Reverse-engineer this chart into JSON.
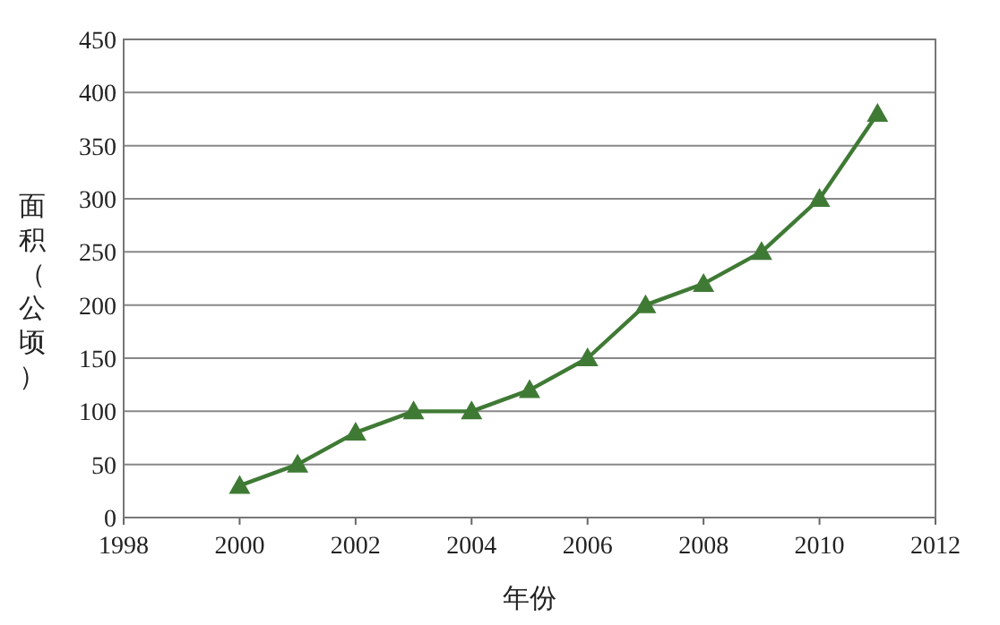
{
  "chart_data": {
    "type": "line",
    "xlabel": "年份",
    "ylabel": "面积（公顷）",
    "x": [
      2000,
      2001,
      2002,
      2003,
      2004,
      2005,
      2006,
      2007,
      2008,
      2009,
      2010,
      2011
    ],
    "series": [
      {
        "color": "#3f7a35",
        "values": [
          30,
          50,
          80,
          100,
          100,
          120,
          150,
          200,
          220,
          250,
          300,
          380
        ]
      }
    ],
    "xlim": [
      1998,
      2012
    ],
    "xticks": [
      1998,
      2000,
      2002,
      2004,
      2006,
      2008,
      2010,
      2012
    ],
    "ylim": [
      0,
      450
    ],
    "yticks": [
      0,
      50,
      100,
      150,
      200,
      250,
      300,
      350,
      400,
      450
    ],
    "grid": "y",
    "marker": "triangle",
    "line_style": "solid"
  }
}
